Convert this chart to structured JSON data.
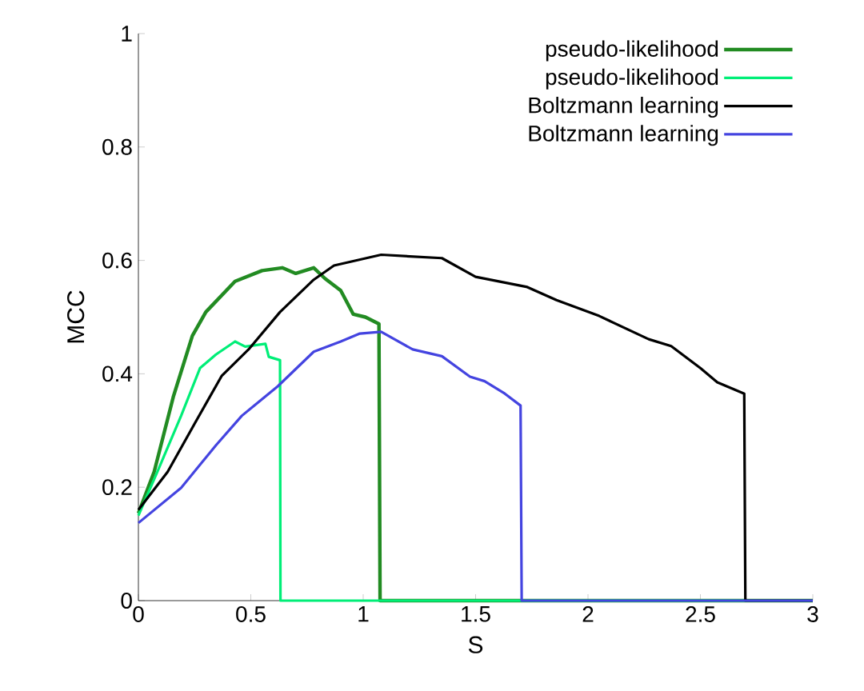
{
  "chart_data": {
    "type": "line",
    "xlabel": "S",
    "ylabel": "MCC",
    "xlim": [
      0,
      3
    ],
    "ylim": [
      0,
      1
    ],
    "xticks": [
      0,
      0.5,
      1,
      1.5,
      2,
      2.5,
      3
    ],
    "yticks": [
      0,
      0.2,
      0.4,
      0.6,
      0.8,
      1
    ],
    "legend": "top right",
    "line_style": "solid",
    "series": [
      {
        "name": "pseudo-likelihood",
        "color": "#228b22",
        "x": [
          0,
          0.07,
          0.155,
          0.24,
          0.3,
          0.43,
          0.55,
          0.64,
          0.7,
          0.78,
          0.83,
          0.9,
          0.956,
          1.01,
          1.07,
          1.075,
          3
        ],
        "values": [
          0.154,
          0.227,
          0.359,
          0.467,
          0.509,
          0.563,
          0.582,
          0.587,
          0.577,
          0.587,
          0.568,
          0.547,
          0.505,
          0.5,
          0.488,
          0,
          0
        ]
      },
      {
        "name": "pseudo-likelihood",
        "color": "#00ee77",
        "x": [
          0,
          0.084,
          0.19,
          0.274,
          0.345,
          0.43,
          0.475,
          0.565,
          0.58,
          0.63,
          0.632,
          3
        ],
        "values": [
          0.15,
          0.227,
          0.326,
          0.41,
          0.434,
          0.457,
          0.448,
          0.453,
          0.43,
          0.424,
          0,
          0
        ]
      },
      {
        "name": "Boltzmann learning",
        "color": "#000000",
        "x": [
          0,
          0.13,
          0.25,
          0.37,
          0.49,
          0.63,
          0.78,
          0.87,
          1.08,
          1.35,
          1.5,
          1.73,
          1.86,
          2.05,
          2.27,
          2.37,
          2.5,
          2.575,
          2.695,
          2.7,
          3
        ],
        "values": [
          0.16,
          0.227,
          0.312,
          0.396,
          0.443,
          0.509,
          0.566,
          0.591,
          0.61,
          0.604,
          0.571,
          0.553,
          0.53,
          0.502,
          0.461,
          0.449,
          0.41,
          0.385,
          0.365,
          0,
          0
        ]
      },
      {
        "name": "Boltzmann learning",
        "color": "#4444e0",
        "x": [
          0,
          0.19,
          0.345,
          0.46,
          0.62,
          0.78,
          0.9,
          0.985,
          1.08,
          1.22,
          1.35,
          1.475,
          1.54,
          1.63,
          1.7,
          1.705,
          3
        ],
        "values": [
          0.137,
          0.199,
          0.274,
          0.326,
          0.378,
          0.439,
          0.457,
          0.471,
          0.474,
          0.443,
          0.431,
          0.395,
          0.387,
          0.365,
          0.344,
          0,
          0
        ]
      }
    ]
  }
}
